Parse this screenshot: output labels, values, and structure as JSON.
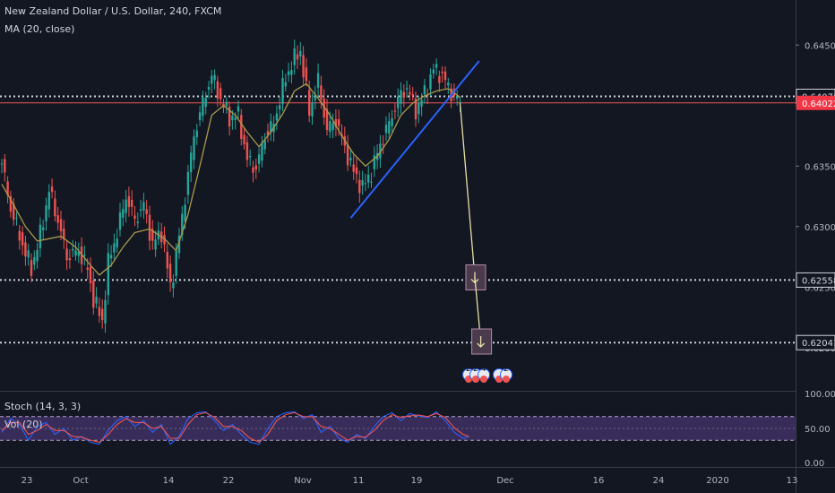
{
  "header": {
    "symbol": "New Zealand Dollar / U.S. Dollar, 240, FXCM",
    "indicator": "MA (20, close)"
  },
  "stoch_panel": {
    "label": "Stoch (14, 3, 3)",
    "vol_label": "Vol (20)",
    "levels": [
      "100.00",
      "50.00",
      "0.00"
    ]
  },
  "price_scale": {
    "ticks": [
      "0.64500",
      "0.64000",
      "0.63500",
      "0.63000",
      "0.62500",
      "0.62000"
    ]
  },
  "levels": [
    {
      "price": 0.64076,
      "label": "0.64076"
    },
    {
      "price": 0.62558,
      "label": "0.62558"
    },
    {
      "price": 0.62041,
      "label": "0.62041"
    }
  ],
  "current_price": {
    "value": 0.64022,
    "label": "0.64022",
    "color": "#f23645"
  },
  "time_axis": {
    "labels": [
      "23",
      "Oct",
      "14",
      "22",
      "Nov",
      "11",
      "19",
      "Dec",
      "16",
      "24",
      "2020",
      "13"
    ]
  },
  "colors": {
    "up": "#26a69a",
    "down": "#ef5350",
    "ma": "#a89a4c",
    "trendline": "#2962ff",
    "projection": "#e6e0a8",
    "stoch_k": "#2962ff",
    "stoch_d": "#ef5350",
    "stoch_band": "#7e57c2"
  },
  "chart_data": {
    "type": "candlestick",
    "title": "New Zealand Dollar / U.S. Dollar, 240, FXCM",
    "ylim": [
      0.6165,
      0.6485
    ],
    "overlays": [
      "MA (20, close)",
      "Stoch (14, 3, 3)",
      "Vol (20)"
    ],
    "ohlc_path": [
      [
        0,
        0.6352
      ],
      [
        3,
        0.6315
      ],
      [
        7,
        0.6285
      ],
      [
        10,
        0.6265
      ],
      [
        13,
        0.6293
      ],
      [
        16,
        0.633
      ],
      [
        19,
        0.6305
      ],
      [
        22,
        0.6275
      ],
      [
        26,
        0.628
      ],
      [
        29,
        0.6265
      ],
      [
        31,
        0.624
      ],
      [
        34,
        0.6222
      ],
      [
        36,
        0.627
      ],
      [
        39,
        0.6295
      ],
      [
        42,
        0.6325
      ],
      [
        45,
        0.6305
      ],
      [
        48,
        0.6318
      ],
      [
        51,
        0.6285
      ],
      [
        54,
        0.6296
      ],
      [
        57,
        0.625
      ],
      [
        59,
        0.6275
      ],
      [
        62,
        0.6325
      ],
      [
        65,
        0.6375
      ],
      [
        68,
        0.6402
      ],
      [
        71,
        0.6425
      ],
      [
        74,
        0.6405
      ],
      [
        77,
        0.639
      ],
      [
        80,
        0.6392
      ],
      [
        83,
        0.6355
      ],
      [
        86,
        0.6348
      ],
      [
        89,
        0.6375
      ],
      [
        92,
        0.6385
      ],
      [
        95,
        0.6415
      ],
      [
        98,
        0.6435
      ],
      [
        101,
        0.6445
      ],
      [
        104,
        0.6395
      ],
      [
        107,
        0.642
      ],
      [
        110,
        0.638
      ],
      [
        113,
        0.6388
      ],
      [
        116,
        0.6365
      ],
      [
        119,
        0.6345
      ],
      [
        122,
        0.6332
      ],
      [
        125,
        0.6345
      ],
      [
        128,
        0.6368
      ],
      [
        131,
        0.6385
      ],
      [
        134,
        0.6405
      ],
      [
        137,
        0.6415
      ],
      [
        140,
        0.6396
      ],
      [
        143,
        0.641
      ],
      [
        146,
        0.643
      ],
      [
        149,
        0.6425
      ],
      [
        152,
        0.641
      ],
      [
        155,
        0.6402
      ]
    ],
    "ma_path": [
      [
        0,
        0.6335
      ],
      [
        4,
        0.6318
      ],
      [
        8,
        0.63
      ],
      [
        12,
        0.6288
      ],
      [
        16,
        0.629
      ],
      [
        20,
        0.6292
      ],
      [
        25,
        0.6283
      ],
      [
        30,
        0.6268
      ],
      [
        33,
        0.626
      ],
      [
        37,
        0.6268
      ],
      [
        41,
        0.6283
      ],
      [
        45,
        0.6295
      ],
      [
        50,
        0.6298
      ],
      [
        55,
        0.629
      ],
      [
        59,
        0.628
      ],
      [
        63,
        0.631
      ],
      [
        67,
        0.635
      ],
      [
        71,
        0.6392
      ],
      [
        75,
        0.64
      ],
      [
        79,
        0.6392
      ],
      [
        83,
        0.6378
      ],
      [
        87,
        0.6366
      ],
      [
        91,
        0.6378
      ],
      [
        95,
        0.6393
      ],
      [
        99,
        0.6412
      ],
      [
        103,
        0.6418
      ],
      [
        107,
        0.6406
      ],
      [
        111,
        0.6392
      ],
      [
        115,
        0.6375
      ],
      [
        119,
        0.636
      ],
      [
        123,
        0.635
      ],
      [
        127,
        0.6358
      ],
      [
        131,
        0.6372
      ],
      [
        135,
        0.6392
      ],
      [
        139,
        0.6402
      ],
      [
        143,
        0.6408
      ],
      [
        147,
        0.6412
      ],
      [
        151,
        0.6414
      ],
      [
        155,
        0.6407
      ]
    ],
    "trendline": {
      "from": [
        118,
        0.6307
      ],
      "to": [
        156,
        0.6422
      ]
    },
    "projection": [
      {
        "from": [
          155,
          0.6402
        ],
        "to": [
          160,
          0.6258
        ],
        "marker": "arrow-down"
      },
      {
        "from": [
          160,
          0.6258
        ],
        "to": [
          162,
          0.6205
        ],
        "marker": "arrow-down"
      }
    ],
    "stoch_k": [
      [
        0,
        40
      ],
      [
        3,
        75
      ],
      [
        6,
        60
      ],
      [
        9,
        20
      ],
      [
        12,
        55
      ],
      [
        15,
        65
      ],
      [
        18,
        35
      ],
      [
        21,
        50
      ],
      [
        24,
        20
      ],
      [
        27,
        30
      ],
      [
        30,
        15
      ],
      [
        33,
        10
      ],
      [
        36,
        45
      ],
      [
        39,
        70
      ],
      [
        42,
        80
      ],
      [
        45,
        55
      ],
      [
        48,
        70
      ],
      [
        51,
        40
      ],
      [
        54,
        60
      ],
      [
        57,
        10
      ],
      [
        60,
        30
      ],
      [
        63,
        75
      ],
      [
        66,
        90
      ],
      [
        69,
        92
      ],
      [
        72,
        70
      ],
      [
        75,
        45
      ],
      [
        78,
        60
      ],
      [
        81,
        35
      ],
      [
        84,
        15
      ],
      [
        87,
        10
      ],
      [
        90,
        50
      ],
      [
        93,
        80
      ],
      [
        96,
        90
      ],
      [
        99,
        92
      ],
      [
        102,
        75
      ],
      [
        105,
        85
      ],
      [
        108,
        40
      ],
      [
        111,
        55
      ],
      [
        114,
        25
      ],
      [
        117,
        15
      ],
      [
        120,
        35
      ],
      [
        123,
        25
      ],
      [
        126,
        55
      ],
      [
        129,
        80
      ],
      [
        132,
        90
      ],
      [
        135,
        70
      ],
      [
        138,
        88
      ],
      [
        141,
        82
      ],
      [
        144,
        78
      ],
      [
        147,
        92
      ],
      [
        150,
        70
      ],
      [
        153,
        40
      ],
      [
        156,
        25
      ],
      [
        158,
        30
      ]
    ],
    "stoch_d": [
      [
        0,
        45
      ],
      [
        3,
        65
      ],
      [
        6,
        65
      ],
      [
        9,
        35
      ],
      [
        12,
        45
      ],
      [
        15,
        60
      ],
      [
        18,
        45
      ],
      [
        21,
        45
      ],
      [
        24,
        30
      ],
      [
        27,
        28
      ],
      [
        30,
        20
      ],
      [
        33,
        15
      ],
      [
        36,
        35
      ],
      [
        39,
        60
      ],
      [
        42,
        75
      ],
      [
        45,
        65
      ],
      [
        48,
        65
      ],
      [
        51,
        50
      ],
      [
        54,
        55
      ],
      [
        57,
        25
      ],
      [
        60,
        25
      ],
      [
        63,
        60
      ],
      [
        66,
        85
      ],
      [
        69,
        90
      ],
      [
        72,
        78
      ],
      [
        75,
        55
      ],
      [
        78,
        55
      ],
      [
        81,
        45
      ],
      [
        84,
        25
      ],
      [
        87,
        15
      ],
      [
        90,
        35
      ],
      [
        93,
        70
      ],
      [
        96,
        85
      ],
      [
        99,
        90
      ],
      [
        102,
        80
      ],
      [
        105,
        80
      ],
      [
        108,
        55
      ],
      [
        111,
        50
      ],
      [
        114,
        35
      ],
      [
        117,
        20
      ],
      [
        120,
        30
      ],
      [
        123,
        28
      ],
      [
        126,
        45
      ],
      [
        129,
        70
      ],
      [
        132,
        85
      ],
      [
        135,
        78
      ],
      [
        138,
        82
      ],
      [
        141,
        84
      ],
      [
        144,
        80
      ],
      [
        147,
        88
      ],
      [
        150,
        78
      ],
      [
        153,
        52
      ],
      [
        156,
        35
      ],
      [
        158,
        30
      ]
    ]
  }
}
